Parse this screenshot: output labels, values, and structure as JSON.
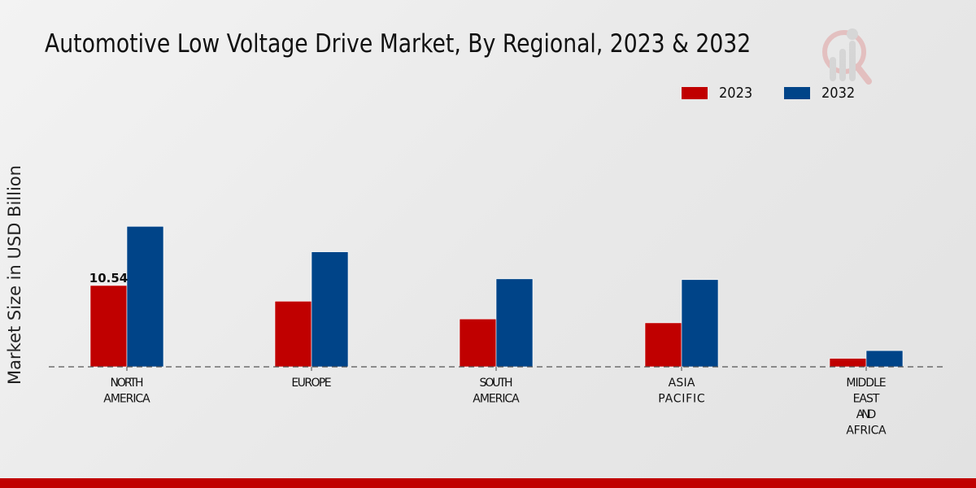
{
  "chart_data": {
    "type": "bar",
    "title": "Automotive Low Voltage Drive Market, By Regional, 2023 & 2032",
    "xlabel": "",
    "ylabel": "Market Size in USD Billion",
    "ylim": [
      0,
      20
    ],
    "grid": false,
    "legend_position": "top-right",
    "categories": [
      "NORTH\nAMERICA",
      "EUROPE",
      "SOUTH\nAMERICA",
      "ASIA\nPACIFIC",
      "MIDDLE\nEAST\nAND\nAFRICA"
    ],
    "series": [
      {
        "name": "2023",
        "color": "#c00000",
        "values": [
          10.54,
          8.5,
          6.2,
          5.7,
          1.1
        ]
      },
      {
        "name": "2032",
        "color": "#004488",
        "values": [
          18.2,
          14.9,
          11.4,
          11.3,
          2.1
        ]
      }
    ],
    "data_labels": [
      {
        "series": "2023",
        "category_index": 0,
        "text": "10.54"
      }
    ]
  },
  "colors": {
    "footer": "#c00000",
    "axis": "#555555"
  }
}
